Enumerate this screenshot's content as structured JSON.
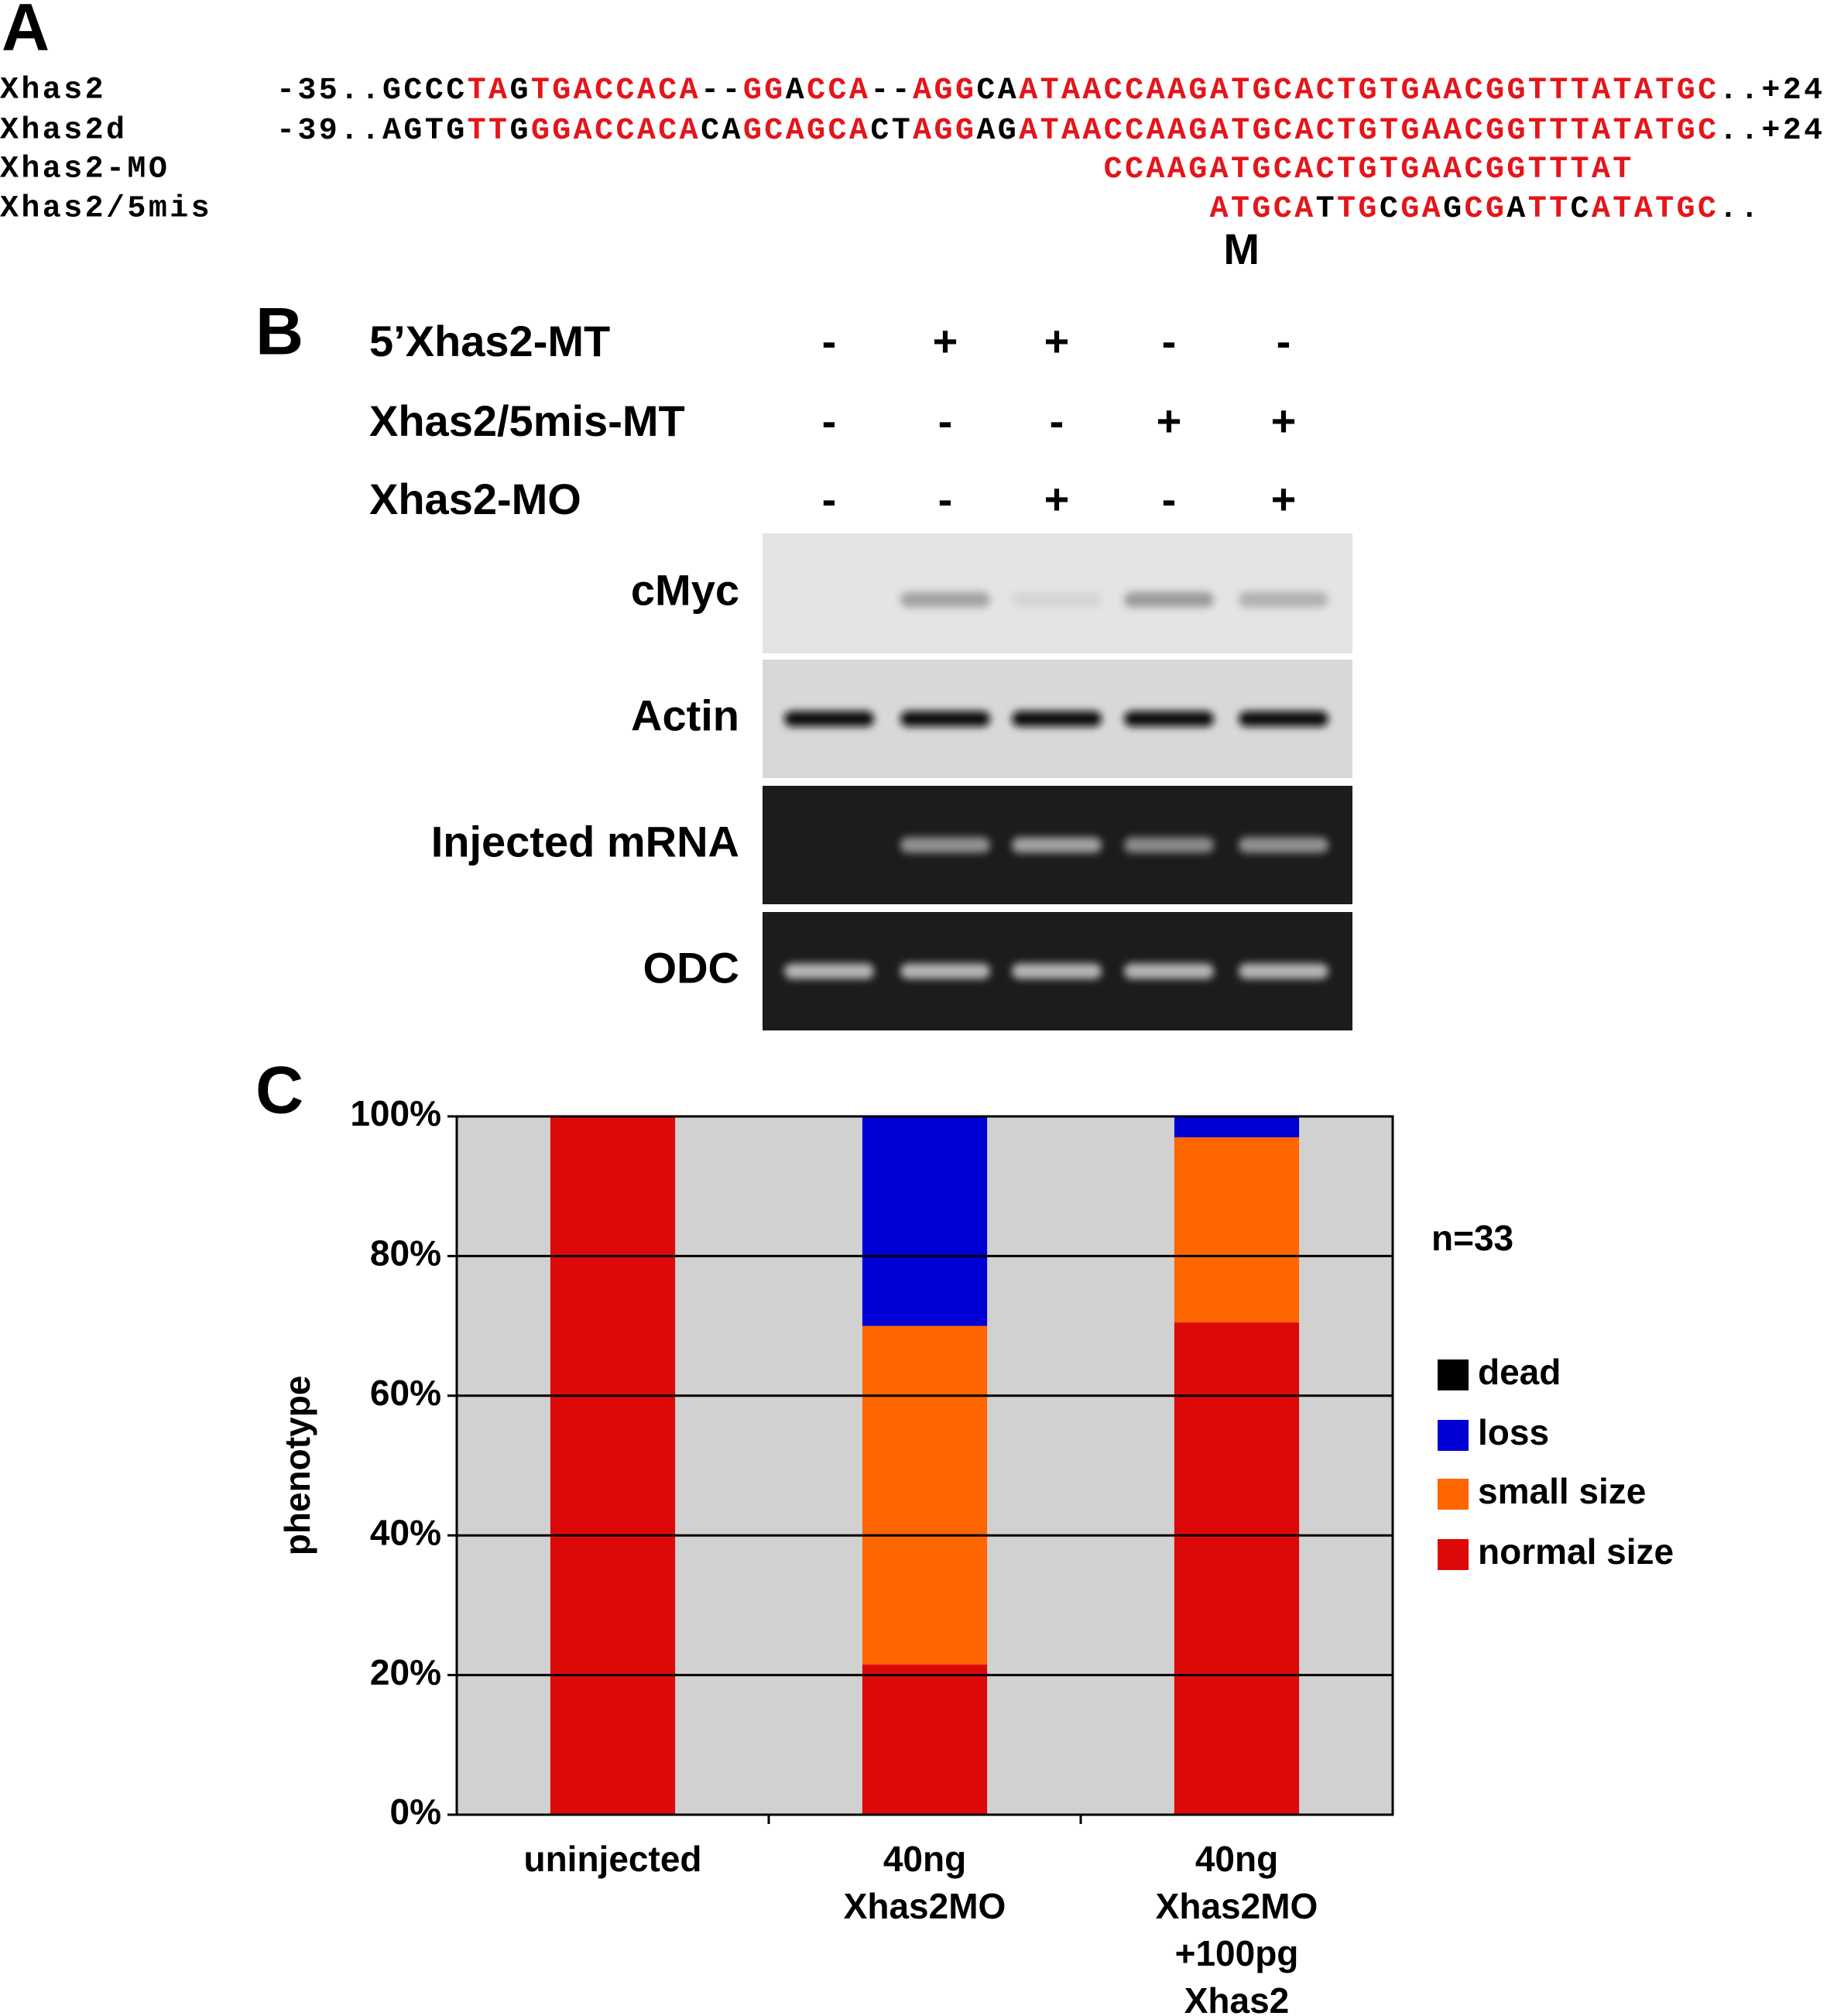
{
  "panel_a": {
    "label": "A",
    "rows": [
      {
        "name": "Xhas2",
        "segments": [
          {
            "text": "-35..GCCC",
            "color": "#000000"
          },
          {
            "text": "TA",
            "color": "#e3161b"
          },
          {
            "text": "G",
            "color": "#000000"
          },
          {
            "text": "TGACCACA",
            "color": "#e3161b"
          },
          {
            "text": "--",
            "color": "#000000"
          },
          {
            "text": "GG",
            "color": "#e3161b"
          },
          {
            "text": "A",
            "color": "#000000"
          },
          {
            "text": "CCA",
            "color": "#e3161b"
          },
          {
            "text": "--",
            "color": "#000000"
          },
          {
            "text": "AGG",
            "color": "#e3161b"
          },
          {
            "text": "CA",
            "color": "#000000"
          },
          {
            "text": "ATAACCAAGATGCACTGTGAACGGTTTATATGC",
            "color": "#e3161b"
          },
          {
            "text": "..+24",
            "color": "#000000"
          }
        ]
      },
      {
        "name": "Xhas2d",
        "segments": [
          {
            "text": "-39..AGTG",
            "color": "#000000"
          },
          {
            "text": "TT",
            "color": "#e3161b"
          },
          {
            "text": "G",
            "color": "#000000"
          },
          {
            "text": "GGACCACA",
            "color": "#e3161b"
          },
          {
            "text": "CA",
            "color": "#000000"
          },
          {
            "text": "GCAGCA",
            "color": "#e3161b"
          },
          {
            "text": "CT",
            "color": "#000000"
          },
          {
            "text": "AGG",
            "color": "#e3161b"
          },
          {
            "text": "AG",
            "color": "#000000"
          },
          {
            "text": "ATAACCAAGATGCACTGTGAACGGTTTATATGC",
            "color": "#e3161b"
          },
          {
            "text": "..+24",
            "color": "#000000"
          }
        ]
      },
      {
        "name": "Xhas2-MO",
        "segments": [
          {
            "text": "CCAAGATGCACTGTGAACGGTTTAT",
            "color": "#e3161b"
          }
        ]
      },
      {
        "name": "Xhas2/5mis",
        "segments": [
          {
            "text": "ATGCA",
            "color": "#e3161b"
          },
          {
            "text": "T",
            "color": "#000000"
          },
          {
            "text": "TG",
            "color": "#e3161b"
          },
          {
            "text": "C",
            "color": "#000000"
          },
          {
            "text": "GA",
            "color": "#e3161b"
          },
          {
            "text": "G",
            "color": "#000000"
          },
          {
            "text": "CG",
            "color": "#e3161b"
          },
          {
            "text": "A",
            "color": "#000000"
          },
          {
            "text": "TT",
            "color": "#e3161b"
          },
          {
            "text": "C",
            "color": "#000000"
          },
          {
            "text": "ATATGC",
            "color": "#e3161b"
          },
          {
            "text": "..",
            "color": "#000000"
          }
        ]
      }
    ],
    "marker": "M"
  },
  "panel_b": {
    "label": "B",
    "conditions": [
      {
        "name": "5’Xhas2-MT",
        "signs": [
          "-",
          "+",
          "+",
          "-",
          "-"
        ]
      },
      {
        "name": "Xhas2/5mis-MT",
        "signs": [
          "-",
          "-",
          "-",
          "+",
          "+"
        ]
      },
      {
        "name": "Xhas2-MO",
        "signs": [
          "-",
          "-",
          "+",
          "-",
          "+"
        ]
      }
    ],
    "blots": [
      "cMyc",
      "Actin",
      "Injected mRNA",
      "ODC"
    ]
  },
  "panel_c": {
    "label": "C"
  },
  "chart_data": {
    "type": "stacked_bar",
    "categories": [
      "uninjected",
      "40ng\nXhas2MO",
      "40ng\nXhas2MO\n+100pg\nXhas2"
    ],
    "series": [
      {
        "name": "normal size",
        "color": "#dd0909",
        "values": [
          100,
          21.5,
          70.5
        ]
      },
      {
        "name": "small size",
        "color": "#ff6600",
        "values": [
          0,
          48.5,
          26.5
        ]
      },
      {
        "name": "loss",
        "color": "#0000d4",
        "values": [
          0,
          30,
          3
        ]
      },
      {
        "name": "dead",
        "color": "#000000",
        "values": [
          0,
          0,
          0
        ]
      }
    ],
    "ylabel": "phenotype",
    "annotation": "n=33",
    "ylim": [
      0,
      100
    ],
    "yticks": [
      {
        "value": 0,
        "label": "0%"
      },
      {
        "value": 20,
        "label": "20%"
      },
      {
        "value": 40,
        "label": "40%"
      },
      {
        "value": 60,
        "label": "60%"
      },
      {
        "value": 80,
        "label": "80%"
      },
      {
        "value": 100,
        "label": "100%"
      }
    ],
    "grid": true,
    "background": "#d1d1d1"
  }
}
